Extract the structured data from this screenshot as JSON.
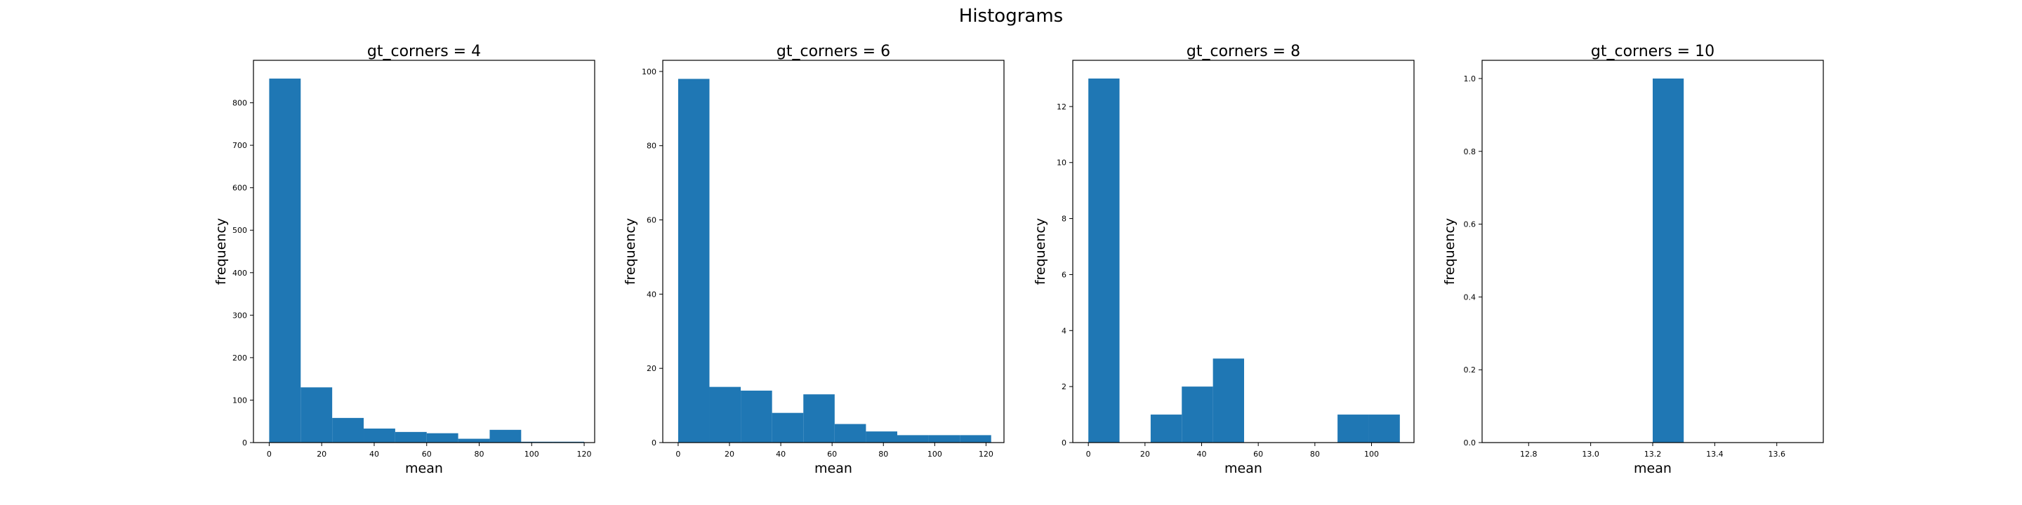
{
  "figure": {
    "suptitle": "Histograms"
  },
  "style": {
    "bar_color": "#1f77b4",
    "axes_color": "#000000",
    "background": "#ffffff"
  },
  "chart_data": [
    {
      "type": "bar",
      "title": "gt_corners = 4",
      "xlabel": "mean",
      "ylabel": "frequency",
      "xlim": [
        -6,
        124
      ],
      "ylim": [
        0,
        900
      ],
      "xticks": [
        0,
        20,
        40,
        60,
        80,
        100,
        120
      ],
      "yticks": [
        0,
        100,
        200,
        300,
        400,
        500,
        600,
        700,
        800
      ],
      "bins": [
        {
          "x0": 0,
          "x1": 12,
          "count": 857
        },
        {
          "x0": 12,
          "x1": 24,
          "count": 130
        },
        {
          "x0": 24,
          "x1": 36,
          "count": 58
        },
        {
          "x0": 36,
          "x1": 48,
          "count": 33
        },
        {
          "x0": 48,
          "x1": 60,
          "count": 25
        },
        {
          "x0": 60,
          "x1": 72,
          "count": 22
        },
        {
          "x0": 72,
          "x1": 84,
          "count": 9
        },
        {
          "x0": 84,
          "x1": 96,
          "count": 30
        },
        {
          "x0": 96,
          "x1": 108,
          "count": 2
        },
        {
          "x0": 108,
          "x1": 120,
          "count": 2
        }
      ]
    },
    {
      "type": "bar",
      "title": "gt_corners = 6",
      "xlabel": "mean",
      "ylabel": "frequency",
      "xlim": [
        -6,
        127
      ],
      "ylim": [
        0,
        103
      ],
      "xticks": [
        0,
        20,
        40,
        60,
        80,
        100,
        120
      ],
      "yticks": [
        0,
        20,
        40,
        60,
        80,
        100
      ],
      "bins": [
        {
          "x0": 0,
          "x1": 12.2,
          "count": 98
        },
        {
          "x0": 12.2,
          "x1": 24.4,
          "count": 15
        },
        {
          "x0": 24.4,
          "x1": 36.6,
          "count": 14
        },
        {
          "x0": 36.6,
          "x1": 48.8,
          "count": 8
        },
        {
          "x0": 48.8,
          "x1": 61,
          "count": 13
        },
        {
          "x0": 61,
          "x1": 73.2,
          "count": 5
        },
        {
          "x0": 73.2,
          "x1": 85.4,
          "count": 3
        },
        {
          "x0": 85.4,
          "x1": 97.6,
          "count": 2
        },
        {
          "x0": 97.6,
          "x1": 109.8,
          "count": 2
        },
        {
          "x0": 109.8,
          "x1": 122,
          "count": 2
        }
      ]
    },
    {
      "type": "bar",
      "title": "gt_corners = 8",
      "xlabel": "mean",
      "ylabel": "frequency",
      "xlim": [
        -5.5,
        115
      ],
      "ylim": [
        0,
        13.65
      ],
      "xticks": [
        0,
        20,
        40,
        60,
        80,
        100
      ],
      "yticks": [
        0,
        2,
        4,
        6,
        8,
        10,
        12
      ],
      "bins": [
        {
          "x0": 0,
          "x1": 11,
          "count": 13
        },
        {
          "x0": 11,
          "x1": 22,
          "count": 0
        },
        {
          "x0": 22,
          "x1": 33,
          "count": 1
        },
        {
          "x0": 33,
          "x1": 44,
          "count": 2
        },
        {
          "x0": 44,
          "x1": 55,
          "count": 3
        },
        {
          "x0": 55,
          "x1": 66,
          "count": 0
        },
        {
          "x0": 66,
          "x1": 77,
          "count": 0
        },
        {
          "x0": 77,
          "x1": 88,
          "count": 0
        },
        {
          "x0": 88,
          "x1": 99,
          "count": 1
        },
        {
          "x0": 99,
          "x1": 110,
          "count": 1
        }
      ]
    },
    {
      "type": "bar",
      "title": "gt_corners = 10",
      "xlabel": "mean",
      "ylabel": "frequency",
      "xlim": [
        12.65,
        13.75
      ],
      "ylim": [
        0,
        1.05
      ],
      "xticks": [
        12.8,
        13.0,
        13.2,
        13.4,
        13.6
      ],
      "yticks": [
        0.0,
        0.2,
        0.4,
        0.6,
        0.8,
        1.0
      ],
      "tick_decimals_x": 1,
      "tick_decimals_y": 1,
      "bins": [
        {
          "x0": 13.2,
          "x1": 13.3,
          "count": 1
        }
      ]
    }
  ]
}
